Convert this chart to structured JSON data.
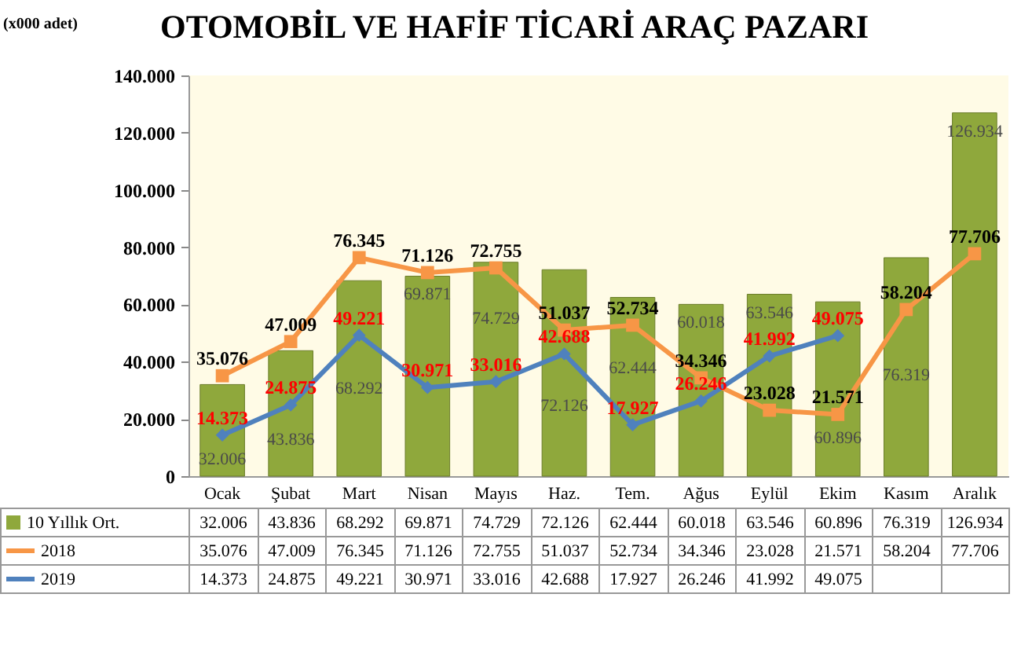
{
  "chart_data": {
    "type": "bar",
    "title": "OTOMOBİL VE HAFİF TİCARİ ARAÇ PAZARI",
    "ylabel": "(x000 adet)",
    "categories": [
      "Ocak",
      "Şubat",
      "Mart",
      "Nisan",
      "Mayıs",
      "Haz.",
      "Tem.",
      "Ağus",
      "Eylül",
      "Ekim",
      "Kasım",
      "Aralık"
    ],
    "series": [
      {
        "name": "10 Yıllık Ort.",
        "color": "#8fa83c",
        "values": [
          32006,
          43836,
          68292,
          69871,
          74729,
          72126,
          62444,
          60018,
          63546,
          60896,
          76319,
          126934
        ],
        "value_labels": [
          "32.006",
          "43.836",
          "68.292",
          "69.871",
          "74.729",
          "72.126",
          "62.444",
          "60.018",
          "63.546",
          "60.896",
          "76.319",
          "126.934"
        ]
      },
      {
        "name": "2018",
        "type": "line",
        "color": "#f79646",
        "marker": "square",
        "values": [
          35076,
          47009,
          76345,
          71126,
          72755,
          51037,
          52734,
          34346,
          23028,
          21571,
          58204,
          77706
        ],
        "value_labels": [
          "35.076",
          "47.009",
          "76.345",
          "71.126",
          "72.755",
          "51.037",
          "52.734",
          "34.346",
          "23.028",
          "21.571",
          "58.204",
          "77.706"
        ]
      },
      {
        "name": "2019",
        "type": "line",
        "color": "#4f81bd",
        "marker": "diamond",
        "values": [
          14373,
          24875,
          49221,
          30971,
          33016,
          42688,
          17927,
          26246,
          41992,
          49075,
          null,
          null
        ],
        "value_labels": [
          "14.373",
          "24.875",
          "49.221",
          "30.971",
          "33.016",
          "42.688",
          "17.927",
          "26.246",
          "41.992",
          "49.075",
          null,
          null
        ]
      }
    ],
    "ylim": [
      0,
      140000
    ],
    "yticks": [
      0,
      {
        "value": 20000,
        "label": "20.000"
      },
      {
        "value": 40000,
        "label": "40.000"
      },
      {
        "value": 60000,
        "label": "60.000"
      },
      {
        "value": 80000,
        "label": "80.000"
      },
      {
        "value": 100000,
        "label": "100.000"
      },
      {
        "value": 120000,
        "label": "120.000"
      },
      {
        "value": 140000,
        "label": "140.000"
      }
    ],
    "data_labels": true,
    "legend": "bottom",
    "line_style": "solid"
  }
}
